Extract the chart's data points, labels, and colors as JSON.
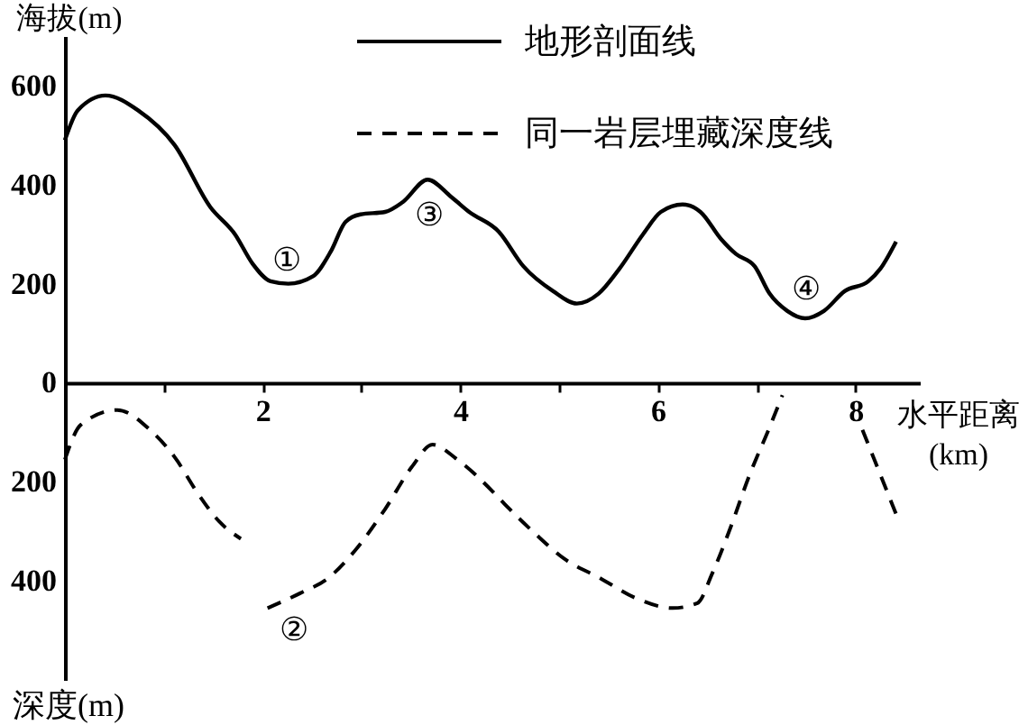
{
  "chart_data": {
    "type": "line",
    "xlabel": "水平距离(km)",
    "ylabel": "海拔(m)",
    "xlim": [
      0,
      8.65
    ],
    "ylim": [
      -600,
      700
    ],
    "xticks": [
      {
        "value": 1,
        "label": null
      },
      2,
      {
        "value": 3,
        "label": null
      },
      4,
      {
        "value": 5,
        "label": null
      },
      6,
      {
        "value": 7,
        "label": null
      },
      8
    ],
    "yticks": [
      {
        "value": -400,
        "label": "400"
      },
      {
        "value": -200,
        "label": "200"
      },
      0,
      200,
      400,
      600
    ],
    "grid": false,
    "legend": "top right",
    "series": [
      {
        "name": "地形剖面线",
        "color": "#000000",
        "line_style": "solid",
        "x": [
          0,
          0.13,
          0.41,
          0.74,
          1.11,
          1.47,
          1.72,
          1.9,
          2.08,
          2.26,
          2.51,
          2.69,
          2.84,
          2.99,
          3.24,
          3.42,
          3.67,
          3.91,
          4.09,
          4.39,
          4.64,
          4.94,
          5.18,
          5.4,
          5.61,
          5.85,
          6.03,
          6.25,
          6.43,
          6.64,
          6.79,
          6.98,
          7.13,
          7.31,
          7.49,
          7.68,
          7.89,
          8.13,
          8.25,
          8.41
        ],
        "values": [
          490,
          550,
          580,
          550,
          480,
          355,
          300,
          240,
          205,
          200,
          215,
          265,
          325,
          340,
          345,
          365,
          410,
          375,
          345,
          305,
          235,
          185,
          160,
          180,
          230,
          300,
          345,
          360,
          345,
          290,
          260,
          235,
          180,
          145,
          130,
          145,
          185,
          205,
          230,
          285
        ]
      },
      {
        "name": "同一岩层埋藏深度线",
        "color": "#000000",
        "line_style": "dashed",
        "x": [
          0,
          0.16,
          0.53,
          0.86,
          1.11,
          1.35,
          1.56,
          1.78,
          1.9,
          2.05,
          2.38,
          2.66,
          2.93,
          3.24,
          3.51,
          3.72,
          3.97,
          4.33,
          4.45,
          4.76,
          5.05,
          5.42,
          5.78,
          6.15,
          6.4,
          6.55,
          6.73,
          6.92,
          7.13,
          7.26,
          7.6,
          8.07,
          8.22,
          8.42
        ],
        "values": [
          -155,
          -85,
          -55,
          -95,
          -150,
          -225,
          -280,
          -315,
          null,
          -455,
          -425,
          -395,
          -340,
          -255,
          -170,
          -125,
          -155,
          -220,
          -245,
          -305,
          -355,
          -395,
          -435,
          -455,
          -445,
          -385,
          -295,
          -190,
          -90,
          -25,
          null,
          -95,
          -170,
          -270
        ]
      }
    ],
    "annotations": [
      "①",
      "②",
      "③",
      "④",
      "深度(m)"
    ]
  }
}
